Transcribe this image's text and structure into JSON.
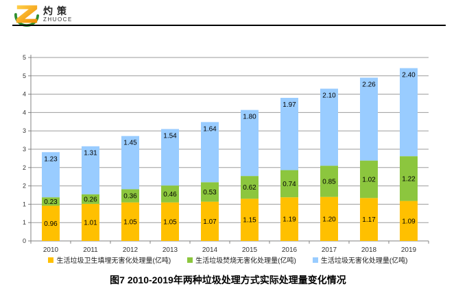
{
  "logo": {
    "name_cn": "灼策",
    "name_en": "ZHUOCE"
  },
  "title": "图7  2010-2019年两种垃圾处理方式实际处理量变化情况",
  "chart_data": {
    "type": "bar",
    "stacked": true,
    "title": "",
    "xlabel": "",
    "ylabel": "",
    "categories": [
      "2010",
      "2011",
      "2012",
      "2013",
      "2014",
      "2015",
      "2016",
      "2017",
      "2018",
      "2019"
    ],
    "series": [
      {
        "name": "生活垃圾卫生填埋无害化处理量(亿吨)",
        "color": "#FFC000",
        "values": [
          0.96,
          1.01,
          1.05,
          1.05,
          1.07,
          1.15,
          1.19,
          1.2,
          1.17,
          1.09
        ]
      },
      {
        "name": "生活垃圾焚烧无害化处理量(亿吨)",
        "color": "#8CC63E",
        "values": [
          0.23,
          0.26,
          0.36,
          0.46,
          0.53,
          0.62,
          0.74,
          0.85,
          1.02,
          1.22
        ]
      },
      {
        "name": "生活垃圾无害化处理量(亿吨)",
        "color": "#99CCFF",
        "values": [
          1.23,
          1.31,
          1.45,
          1.54,
          1.64,
          1.8,
          1.97,
          2.1,
          2.26,
          2.4
        ]
      }
    ],
    "ylim": [
      0,
      5
    ],
    "ytick_step": 0.5,
    "ytick_labels_bottom_to_top": [
      "0",
      "1",
      "1",
      "2",
      "2",
      "3",
      "3",
      "4",
      "4",
      "5",
      "5"
    ],
    "grid": true,
    "legend_position": "bottom",
    "value_labels": true,
    "colors": {
      "gridline": "#9B9B9B",
      "axis": "#808080",
      "label_text": "#000000"
    }
  }
}
